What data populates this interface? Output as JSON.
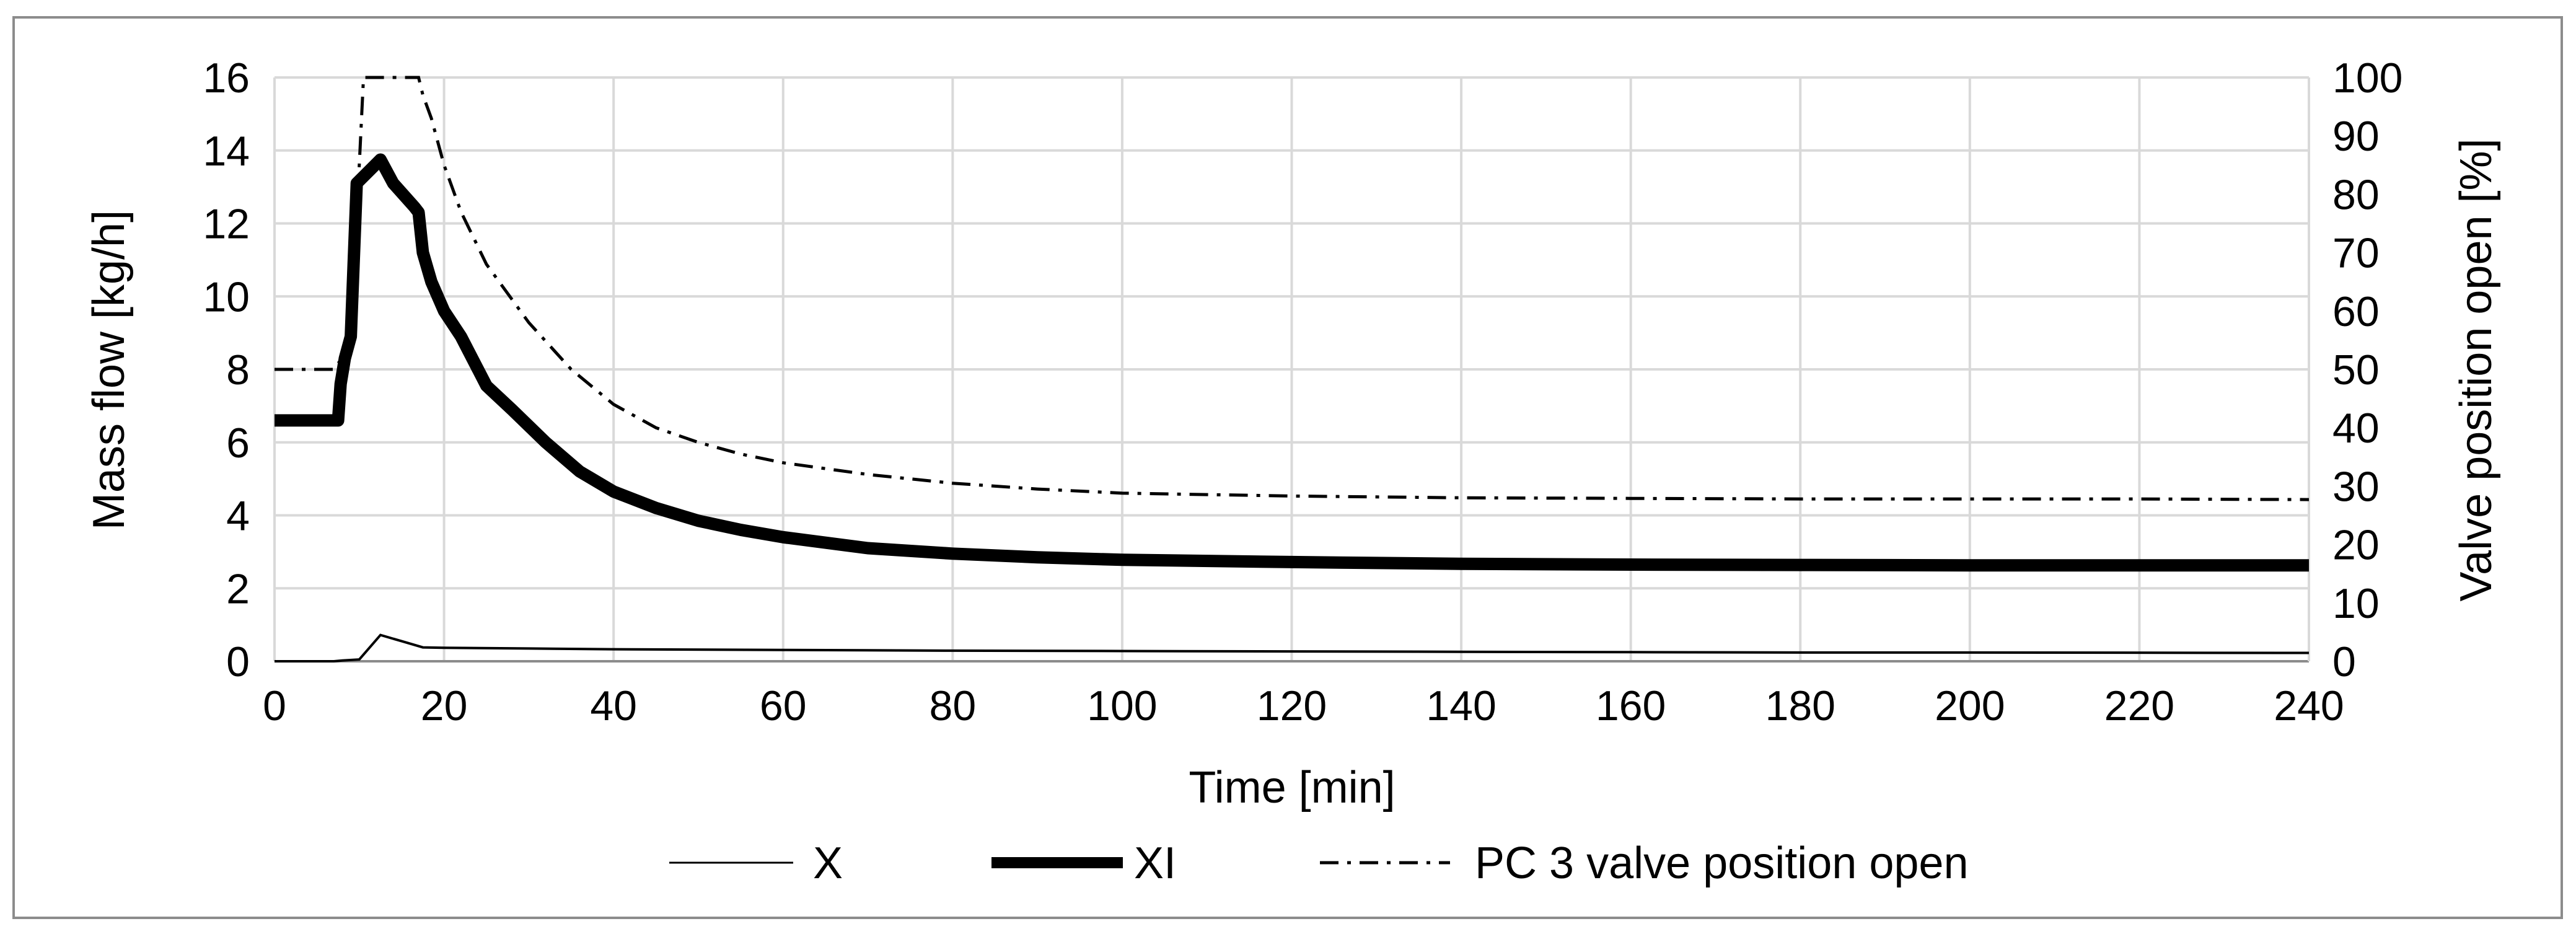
{
  "chart_data": {
    "type": "line",
    "xlabel": "Time [min]",
    "ylabel": "Mass flow [kg/h]",
    "y2label": "Valve position open [%]",
    "xlim": [
      0,
      240
    ],
    "ylim": [
      0,
      16
    ],
    "y2lim": [
      0,
      100
    ],
    "xticks": [
      0,
      20,
      40,
      60,
      80,
      100,
      120,
      140,
      160,
      180,
      200,
      220,
      240
    ],
    "yticks": [
      0,
      2,
      4,
      6,
      8,
      10,
      12,
      14,
      16
    ],
    "y2ticks": [
      0,
      10,
      20,
      30,
      40,
      50,
      60,
      70,
      80,
      90,
      100
    ],
    "grid": true,
    "legend_position": "bottom",
    "series": [
      {
        "name": "X",
        "axis": "left",
        "style": "thin-solid",
        "color": "#000000",
        "points": [
          [
            0,
            0
          ],
          [
            7,
            0
          ],
          [
            8,
            0.02
          ],
          [
            10,
            0.05
          ],
          [
            12.5,
            0.72
          ],
          [
            15,
            0.55
          ],
          [
            17.5,
            0.38
          ],
          [
            20,
            0.37
          ],
          [
            30,
            0.35
          ],
          [
            40,
            0.33
          ],
          [
            60,
            0.31
          ],
          [
            80,
            0.29
          ],
          [
            100,
            0.28
          ],
          [
            120,
            0.27
          ],
          [
            140,
            0.26
          ],
          [
            160,
            0.25
          ],
          [
            180,
            0.24
          ],
          [
            200,
            0.24
          ],
          [
            240,
            0.23
          ]
        ]
      },
      {
        "name": "XI",
        "axis": "left",
        "style": "thick-solid",
        "color": "#000000",
        "points": [
          [
            0,
            6.6
          ],
          [
            7.5,
            6.6
          ],
          [
            7.8,
            7.6
          ],
          [
            8.3,
            8.3
          ],
          [
            9,
            8.9
          ],
          [
            9.7,
            13.1
          ],
          [
            12.5,
            13.75
          ],
          [
            14,
            13.1
          ],
          [
            16.5,
            12.45
          ],
          [
            17,
            12.3
          ],
          [
            17.5,
            11.2
          ],
          [
            18.5,
            10.4
          ],
          [
            20,
            9.6
          ],
          [
            22,
            8.9
          ],
          [
            25,
            7.55
          ],
          [
            28,
            6.9
          ],
          [
            32,
            6.0
          ],
          [
            36,
            5.2
          ],
          [
            40,
            4.65
          ],
          [
            45,
            4.2
          ],
          [
            50,
            3.85
          ],
          [
            55,
            3.6
          ],
          [
            60,
            3.4
          ],
          [
            70,
            3.1
          ],
          [
            80,
            2.95
          ],
          [
            90,
            2.85
          ],
          [
            100,
            2.78
          ],
          [
            120,
            2.72
          ],
          [
            140,
            2.67
          ],
          [
            160,
            2.65
          ],
          [
            180,
            2.64
          ],
          [
            200,
            2.63
          ],
          [
            220,
            2.63
          ],
          [
            240,
            2.63
          ]
        ]
      },
      {
        "name": "PC 3 valve position open",
        "axis": "right",
        "style": "dash-dot",
        "color": "#000000",
        "points": [
          [
            0,
            50
          ],
          [
            7,
            50
          ],
          [
            8,
            52
          ],
          [
            9,
            60
          ],
          [
            10,
            85
          ],
          [
            10.5,
            100
          ],
          [
            17,
            100
          ],
          [
            17.5,
            97
          ],
          [
            18.5,
            93
          ],
          [
            20,
            85
          ],
          [
            22,
            77
          ],
          [
            25,
            68
          ],
          [
            30,
            58
          ],
          [
            35,
            50
          ],
          [
            40,
            44
          ],
          [
            45,
            40
          ],
          [
            50,
            37.5
          ],
          [
            55,
            35.5
          ],
          [
            60,
            34
          ],
          [
            70,
            32
          ],
          [
            80,
            30.5
          ],
          [
            90,
            29.5
          ],
          [
            100,
            28.8
          ],
          [
            120,
            28.3
          ],
          [
            140,
            28
          ],
          [
            160,
            27.9
          ],
          [
            180,
            27.8
          ],
          [
            200,
            27.8
          ],
          [
            220,
            27.8
          ],
          [
            240,
            27.7
          ]
        ]
      }
    ]
  }
}
